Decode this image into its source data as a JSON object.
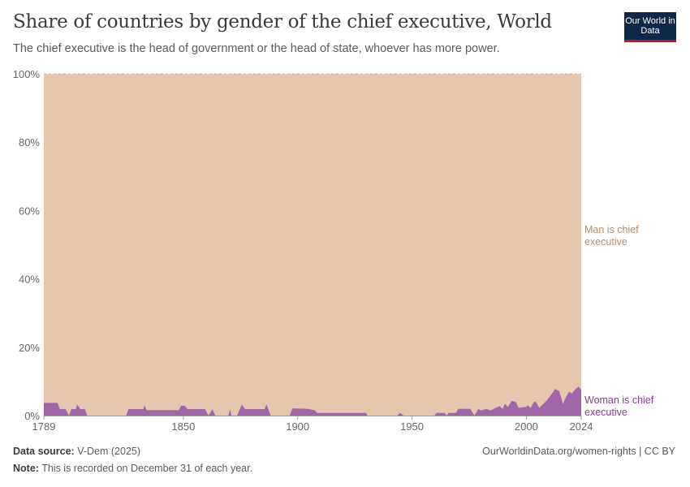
{
  "title": "Share of countries by gender of the chief executive, World",
  "subtitle": "The chief executive is the head of government or the head of state, whoever has more power.",
  "logo": "Our World in Data",
  "footer": {
    "source_label": "Data source:",
    "source": "V-Dem (2025)",
    "url": "OurWorldinData.org/women-rights | CC BY",
    "note_label": "Note:",
    "note": "This is recorded on December 31 of each year."
  },
  "colors": {
    "man": "#e6c6ae",
    "woman": "#a265a8",
    "man_label": "#b88c6e",
    "woman_label": "#8a3d93"
  },
  "chart_data": {
    "type": "area",
    "stacked": true,
    "xlim": [
      1789,
      2024
    ],
    "ylim": [
      0,
      100
    ],
    "x_ticks": [
      "1789",
      "1850",
      "1900",
      "1950",
      "2000",
      "2024"
    ],
    "y_ticks": [
      "0%",
      "20%",
      "40%",
      "60%",
      "80%",
      "100%"
    ],
    "series": [
      {
        "name": "Woman is chief executive",
        "points": [
          [
            1789,
            3.7
          ],
          [
            1795,
            3.7
          ],
          [
            1796,
            1.9
          ],
          [
            1798.5,
            1.9
          ],
          [
            1800,
            0
          ],
          [
            1801,
            1.9
          ],
          [
            1803,
            1.9
          ],
          [
            1803.5,
            3.3
          ],
          [
            1805,
            1.9
          ],
          [
            1807,
            1.9
          ],
          [
            1808,
            0
          ],
          [
            1825,
            0
          ],
          [
            1826,
            1.9
          ],
          [
            1832.5,
            1.9
          ],
          [
            1833,
            3
          ],
          [
            1834,
            1.6
          ],
          [
            1848,
            1.6
          ],
          [
            1849,
            2.9
          ],
          [
            1850.6,
            2.9
          ],
          [
            1851.8,
            1.9
          ],
          [
            1859.5,
            1.9
          ],
          [
            1861,
            0
          ],
          [
            1862.7,
            1.9
          ],
          [
            1864,
            0
          ],
          [
            1869.7,
            0
          ],
          [
            1870.5,
            1.9
          ],
          [
            1871,
            0
          ],
          [
            1873.5,
            0
          ],
          [
            1875.6,
            3.3
          ],
          [
            1877,
            1.9
          ],
          [
            1885.5,
            1.9
          ],
          [
            1886.4,
            3.3
          ],
          [
            1888.2,
            0
          ],
          [
            1896.5,
            0
          ],
          [
            1897.7,
            2.1
          ],
          [
            1904,
            2.0
          ],
          [
            1907.4,
            1.6
          ],
          [
            1908.5,
            0.8
          ],
          [
            1929.9,
            0.8
          ],
          [
            1930.5,
            0
          ],
          [
            1943.6,
            0
          ],
          [
            1944.8,
            0.8
          ],
          [
            1946.3,
            0
          ],
          [
            1959.8,
            0
          ],
          [
            1960.7,
            0.8
          ],
          [
            1964.3,
            0.8
          ],
          [
            1965.2,
            0
          ],
          [
            1966,
            0.8
          ],
          [
            1969.2,
            0.8
          ],
          [
            1970.2,
            2
          ],
          [
            1975.5,
            2
          ],
          [
            1977.3,
            0
          ],
          [
            1979,
            2
          ],
          [
            1980.2,
            1.5
          ],
          [
            1982.6,
            2
          ],
          [
            1984.4,
            1.5
          ],
          [
            1986.6,
            2.3
          ],
          [
            1988.4,
            2.8
          ],
          [
            1989.6,
            2
          ],
          [
            1990.7,
            3.5
          ],
          [
            1991.9,
            2.5
          ],
          [
            1993.6,
            4.3
          ],
          [
            1995.4,
            4
          ],
          [
            1996.6,
            2.3
          ],
          [
            1999.6,
            2.5
          ],
          [
            2000.7,
            3
          ],
          [
            2001.9,
            2.3
          ],
          [
            2003.3,
            4
          ],
          [
            2004.2,
            4
          ],
          [
            2005.6,
            2.3
          ],
          [
            2007.5,
            3.5
          ],
          [
            2009.1,
            4.5
          ],
          [
            2010.7,
            6
          ],
          [
            2012.6,
            7.8
          ],
          [
            2014.4,
            7.2
          ],
          [
            2016,
            3.5
          ],
          [
            2017.4,
            5.5
          ],
          [
            2018.7,
            7
          ],
          [
            2019.9,
            6.5
          ],
          [
            2021.1,
            7.5
          ],
          [
            2022.9,
            8.5
          ],
          [
            2024,
            7.5
          ]
        ]
      },
      {
        "name": "Man is chief executive",
        "complement_of": "Woman is chief executive"
      }
    ]
  }
}
